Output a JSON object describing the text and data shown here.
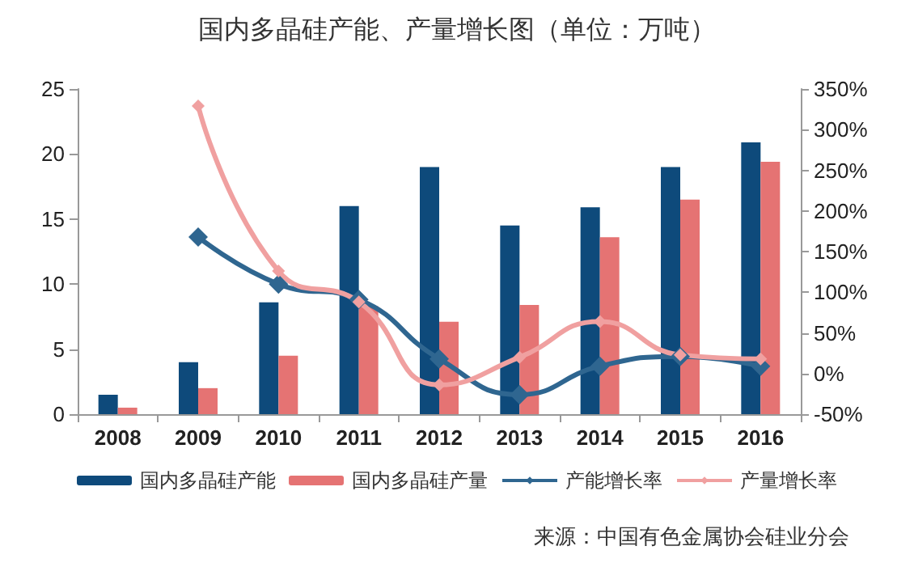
{
  "chart_data": {
    "type": "bar",
    "title": "国内多晶硅产能、产量增长图（单位：万吨）",
    "categories": [
      "2008",
      "2009",
      "2010",
      "2011",
      "2012",
      "2013",
      "2014",
      "2015",
      "2016"
    ],
    "series": [
      {
        "name": "国内多晶硅产能",
        "color": "#0e4a7b",
        "values": [
          1.5,
          4,
          8.6,
          16,
          19,
          14.5,
          15.9,
          19,
          20.9
        ]
      },
      {
        "name": "国内多晶硅产量",
        "color": "#e57373",
        "values": [
          0.5,
          2,
          4.5,
          8.3,
          7.1,
          8.4,
          13.6,
          16.5,
          19.4
        ]
      },
      {
        "name": "产能增长率",
        "type": "line",
        "axis": "y2",
        "color": "#2f6690",
        "values": [
          null,
          168,
          110,
          91,
          18,
          -26,
          9,
          21,
          9
        ]
      },
      {
        "name": "产量增长率",
        "type": "line",
        "axis": "y2",
        "color": "#f0a0a0",
        "values": [
          null,
          329,
          126,
          88,
          -14,
          20,
          64,
          23,
          18
        ]
      }
    ],
    "ylim": [
      0,
      25
    ],
    "yticks": [
      0,
      5,
      10,
      15,
      20,
      25
    ],
    "y2lim": [
      -50,
      350
    ],
    "y2ticks": [
      {
        "value": -50,
        "label": "-50%"
      },
      {
        "value": 0,
        "label": "0%"
      },
      {
        "value": 50,
        "label": "50%"
      },
      {
        "value": 100,
        "label": "100%"
      },
      {
        "value": 150,
        "label": "150%"
      },
      {
        "value": 200,
        "label": "200%"
      },
      {
        "value": 250,
        "label": "250%"
      },
      {
        "value": 300,
        "label": "300%"
      },
      {
        "value": 350,
        "label": "350%"
      }
    ],
    "marker": "diamond",
    "grid": false,
    "legend": "bottom",
    "annotations": [
      "来源：中国有色金属协会硅业分会"
    ]
  }
}
